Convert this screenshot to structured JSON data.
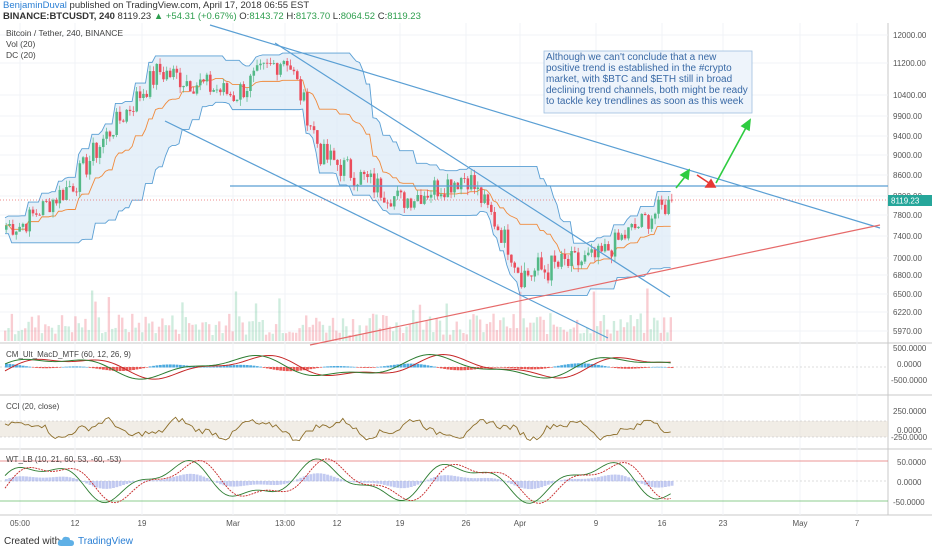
{
  "header": {
    "author": "BenjaminDuval",
    "published_text": "published on TradingView.com, April 17, 2018 06:55 EST",
    "symbol": "BINANCE:BTCUSDT, 240",
    "last": "8119.23",
    "change": "+54.31 (+0.67%)",
    "o_label": "O:",
    "o_value": "8143.72",
    "h_label": "H:",
    "h_value": "8173.70",
    "l_label": "L:",
    "l_value": "8064.52",
    "c_label": "C:",
    "c_value": "8119.23"
  },
  "legend": {
    "title": "Bitcoin / Tether, 240, BINANCE",
    "vol": "Vol (20)",
    "dc": "DC (20)"
  },
  "annotation": "Although we can't conclude that a new positive trend is established in the #crypto market, with $BTC and $ETH still in broad declining trend channels, both  might be ready to tackle key trendlines as soon as this week",
  "panes": {
    "macd": {
      "label": "CM_Ult_MacD_MTF (60, 12, 26, 9)",
      "ticks": [
        "500.0000",
        "0.0000",
        "-500.0000"
      ]
    },
    "cci": {
      "label": "CCI (20, close)",
      "ticks": [
        "250.0000",
        "0.0000",
        "-250.0000"
      ]
    },
    "wt": {
      "label": "WT_LB (10, 21, 60, 53, -60, -53)",
      "ticks": [
        "50.0000",
        "0.0000",
        "-50.0000"
      ]
    }
  },
  "x_ticks": [
    "05:00",
    "12",
    "19",
    "Mar",
    "13:00",
    "12",
    "19",
    "26",
    "Apr",
    "9",
    "16",
    "23",
    "May",
    "7"
  ],
  "price_ticks": [
    "12000.00",
    "11200.00",
    "10400.00",
    "9900.00",
    "9400.00",
    "9000.00",
    "8600.00",
    "8200.00",
    "7800.00",
    "7400.00",
    "7000.00",
    "6800.00",
    "6500.00",
    "6220.00",
    "5970.00"
  ],
  "price_badge": "8119.23",
  "colors": {
    "up": "#53b987",
    "down": "#eb4d5c",
    "trendline": "#5a9fd4",
    "support": "#e66a6a",
    "channel_fill": "#dbeaf7",
    "arrow": "#2ecc40",
    "arrow_red": "#e53935"
  },
  "chart_data": {
    "type": "line",
    "title": "Bitcoin / Tether, 240, BINANCE",
    "x": [
      "05:00",
      "12",
      "19",
      "Mar",
      "13:00",
      "12",
      "19",
      "26",
      "Apr",
      "9",
      "16"
    ],
    "series": [
      {
        "values": [
          7600,
          8500,
          11000,
          10400,
          11400,
          9000,
          8100,
          8600,
          6800,
          7000,
          8119
        ]
      }
    ],
    "ylim": [
      5700,
      12300
    ],
    "ylabel": "",
    "xlabel": ""
  },
  "footer": {
    "created": "Created with",
    "brand": "TradingView"
  }
}
